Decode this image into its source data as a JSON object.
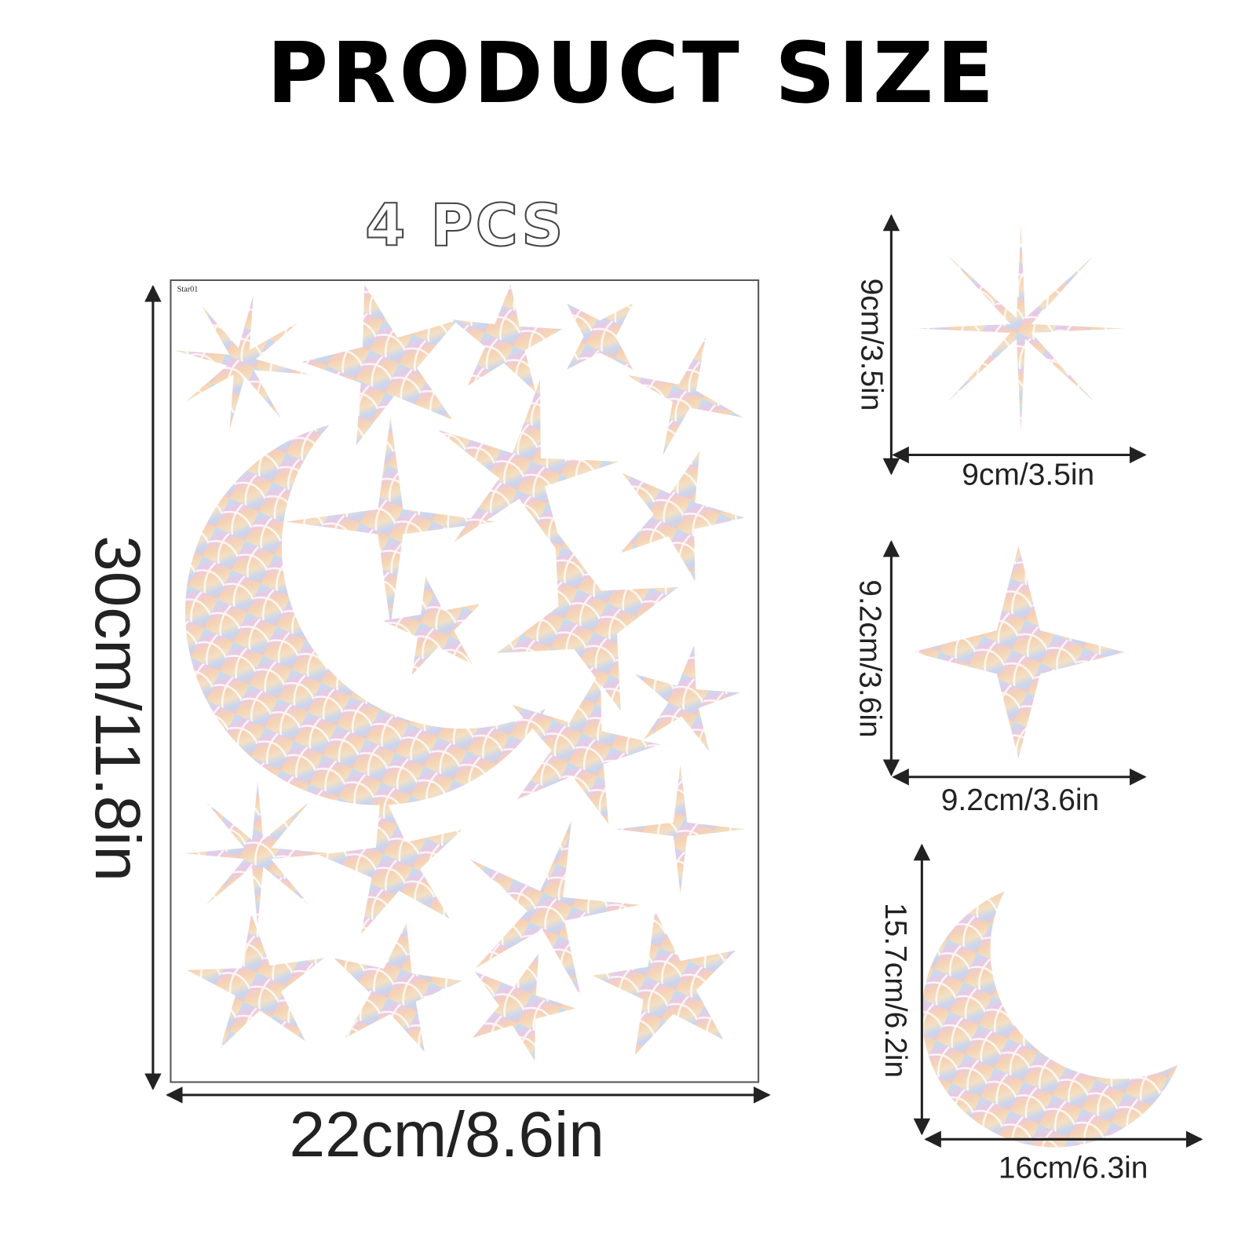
{
  "header": {
    "title": "PRODUCT SIZE"
  },
  "sheet": {
    "quantity": "4 PCS",
    "label": "Star01",
    "height": "30cm/11.8in",
    "width": "22cm/8.6in"
  },
  "items": [
    {
      "height": "9cm/3.5in",
      "width": "9cm/3.5in"
    },
    {
      "height": "9.2cm/3.6in",
      "width": "9.2cm/3.6in"
    },
    {
      "height": "15.7cm/6.2in",
      "width": "16cm/6.3in"
    }
  ]
}
